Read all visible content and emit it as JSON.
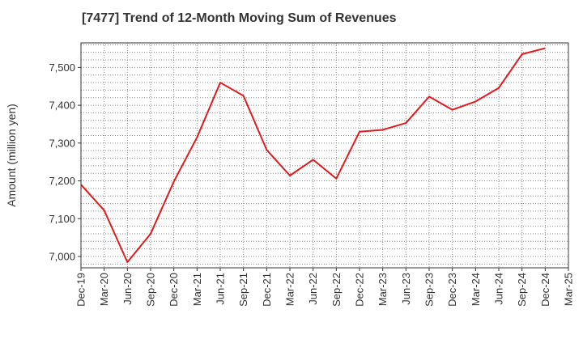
{
  "chart_data": {
    "type": "line",
    "title": "[7477]  Trend of 12-Month Moving Sum of Revenues",
    "ylabel": "Amount (million yen)",
    "xlabel": "",
    "x_ticks": [
      "Dec-19",
      "Mar-20",
      "Jun-20",
      "Sep-20",
      "Dec-20",
      "Mar-21",
      "Jun-21",
      "Sep-21",
      "Dec-21",
      "Mar-22",
      "Jun-22",
      "Sep-22",
      "Dec-22",
      "Mar-23",
      "Jun-23",
      "Sep-23",
      "Dec-23",
      "Mar-24",
      "Jun-24",
      "Sep-24",
      "Dec-24",
      "Mar-25"
    ],
    "y_ticks": [
      "7,000",
      "7,100",
      "7,200",
      "7,300",
      "7,400",
      "7,500"
    ],
    "ylim": [
      6970,
      7565
    ],
    "grid": true,
    "line_color": "#e31a1c",
    "series": [
      {
        "name": "",
        "x": [
          "Dec-19",
          "Mar-20",
          "Jun-20",
          "Sep-20",
          "Dec-20",
          "Mar-21",
          "Jun-21",
          "Sep-21",
          "Dec-21",
          "Mar-22",
          "Jun-22",
          "Sep-22",
          "Dec-22",
          "Mar-23",
          "Jun-23",
          "Sep-23",
          "Dec-23",
          "Mar-24",
          "Jun-24",
          "Sep-24",
          "Dec-24"
        ],
        "values": [
          7190,
          7122,
          6985,
          7060,
          7198,
          7315,
          7460,
          7425,
          7282,
          7214,
          7256,
          7206,
          7330,
          7335,
          7353,
          7423,
          7388,
          7410,
          7446,
          7535,
          7551
        ]
      }
    ]
  }
}
